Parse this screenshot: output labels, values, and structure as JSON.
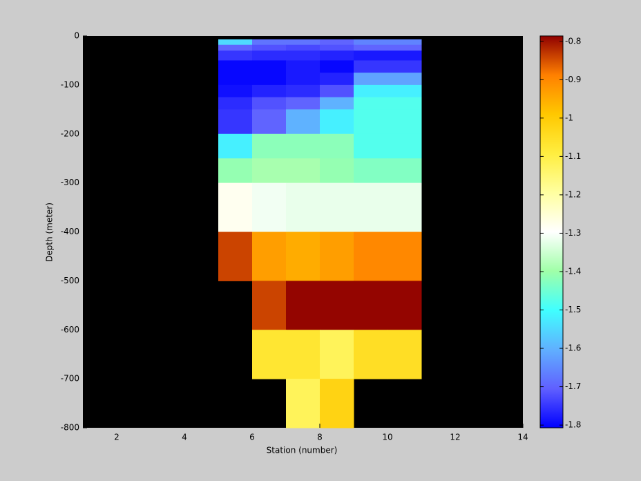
{
  "chart_data": {
    "type": "heatmap",
    "xlabel": "Station (number)",
    "ylabel": "Depth (meter)",
    "x_edges": [
      5,
      6,
      7,
      8,
      9,
      10,
      11
    ],
    "y_edges": [
      -7,
      -18,
      -30,
      -50,
      -75,
      -100,
      -125,
      -150,
      -200,
      -250,
      -300,
      -400,
      -500,
      -600,
      -700,
      -800
    ],
    "z": [
      [
        -1.55,
        -1.68,
        -1.68,
        -1.7,
        -1.66,
        -1.66
      ],
      [
        -1.7,
        -1.72,
        -1.73,
        -1.72,
        -1.7,
        -1.7
      ],
      [
        -1.75,
        -1.76,
        -1.76,
        -1.77,
        -1.78,
        -1.78
      ],
      [
        -1.8,
        -1.8,
        -1.78,
        -1.8,
        -1.75,
        -1.75
      ],
      [
        -1.8,
        -1.8,
        -1.78,
        -1.77,
        -1.62,
        -1.62
      ],
      [
        -1.79,
        -1.77,
        -1.76,
        -1.72,
        -1.52,
        -1.52
      ],
      [
        -1.76,
        -1.72,
        -1.7,
        -1.6,
        -1.48,
        -1.48
      ],
      [
        -1.75,
        -1.7,
        -1.6,
        -1.52,
        -1.48,
        -1.48
      ],
      [
        -1.52,
        -1.42,
        -1.42,
        -1.42,
        -1.48,
        -1.48
      ],
      [
        -1.41,
        -1.39,
        -1.39,
        -1.41,
        -1.43,
        -1.43
      ],
      [
        -1.28,
        -1.31,
        -1.32,
        -1.32,
        -1.32,
        -1.32
      ],
      [
        -0.84,
        -0.93,
        -0.95,
        -0.93,
        -0.9,
        -0.9
      ],
      [
        null,
        -0.84,
        -0.79,
        -0.79,
        -0.79,
        -0.79
      ],
      [
        null,
        -1.07,
        -1.07,
        -1.12,
        -1.05,
        -1.05
      ],
      [
        null,
        null,
        -1.12,
        -1.02,
        null,
        null
      ]
    ],
    "xlim": [
      1,
      14
    ],
    "xticks": [
      2,
      4,
      6,
      8,
      10,
      12,
      14
    ],
    "ylim": [
      -800,
      0
    ],
    "yticks": [
      -800,
      -700,
      -600,
      -500,
      -400,
      -300,
      -200,
      -100,
      0
    ],
    "clim": [
      -1.807,
      -0.786
    ],
    "cticks": [
      -1.8,
      -1.7,
      -1.6,
      -1.5,
      -1.4,
      -1.3,
      -1.2,
      -1.1,
      -1,
      -0.9,
      -0.8
    ],
    "colormap": [
      "#0000ff",
      "#6060ff",
      "#60b0ff",
      "#40ffff",
      "#a0ffa8",
      "#ffffff",
      "#ffffa0",
      "#ffee40",
      "#ffc800",
      "#ff8000",
      "#900000"
    ],
    "axes_color": "#000000",
    "background": "#cccccc"
  }
}
